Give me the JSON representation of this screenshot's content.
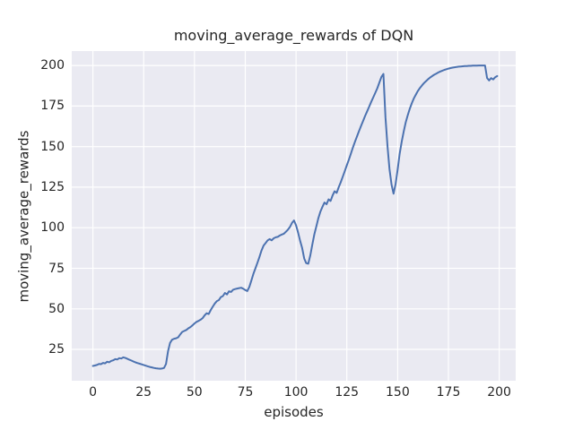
{
  "figure": {
    "background": "#ffffff"
  },
  "chart_data": {
    "type": "line",
    "title": "moving_average_rewards of DQN",
    "xlabel": "episodes",
    "ylabel": "moving_average_rewards",
    "x_ticks": [
      0,
      25,
      50,
      75,
      100,
      125,
      150,
      175,
      200
    ],
    "y_ticks": [
      25,
      50,
      75,
      100,
      125,
      150,
      175,
      200
    ],
    "xlim": [
      -10.4,
      208.1
    ],
    "ylim": [
      5.7,
      208.9
    ],
    "grid": true,
    "legend_position": "none",
    "colors": {
      "line": "#4C72B0",
      "axes_background": "#EAEAF2",
      "grid": "#FFFFFF",
      "text": "#262626"
    },
    "series": [
      {
        "name": "moving_average_rewards",
        "x_start": 0,
        "x_step": 1,
        "y": [
          14.8,
          15.1,
          15.4,
          16.1,
          15.9,
          16.7,
          16.4,
          17.4,
          17.1,
          17.9,
          18.3,
          19.0,
          18.8,
          19.6,
          19.4,
          20.1,
          19.7,
          19.2,
          18.6,
          18.1,
          17.5,
          17.0,
          16.6,
          16.2,
          15.8,
          15.4,
          15.0,
          14.6,
          14.2,
          13.9,
          13.6,
          13.4,
          13.2,
          13.1,
          13.2,
          13.6,
          16.0,
          24.0,
          29.0,
          31.0,
          31.6,
          31.9,
          32.5,
          34.3,
          35.8,
          36.4,
          37.0,
          38.0,
          38.8,
          39.8,
          41.0,
          42.0,
          42.6,
          43.3,
          44.3,
          46.0,
          47.3,
          46.8,
          49.3,
          51.3,
          53.3,
          54.8,
          55.4,
          57.3,
          57.9,
          59.8,
          58.9,
          60.8,
          60.4,
          61.8,
          62.2,
          62.5,
          62.8,
          63.0,
          62.4,
          61.6,
          61.0,
          63.5,
          67.5,
          71.5,
          75.0,
          78.5,
          82.0,
          86.0,
          89.0,
          90.5,
          92.2,
          93.0,
          92.2,
          93.5,
          94.1,
          94.4,
          95.2,
          95.8,
          96.3,
          97.5,
          98.8,
          100.5,
          103.0,
          104.5,
          101.5,
          97.0,
          92.0,
          87.5,
          81.0,
          78.2,
          77.8,
          83.0,
          89.5,
          96.0,
          101.0,
          106.0,
          110.0,
          113.0,
          115.5,
          114.5,
          117.5,
          116.5,
          120.0,
          122.5,
          121.5,
          125.0,
          128.0,
          131.5,
          135.0,
          138.5,
          142.0,
          145.8,
          149.5,
          153.0,
          156.4,
          159.6,
          162.8,
          165.9,
          168.9,
          171.8,
          174.7,
          177.6,
          180.4,
          183.2,
          186.0,
          189.5,
          193.0,
          194.8,
          168.0,
          150.0,
          136.0,
          126.5,
          121.0,
          127.0,
          136.0,
          145.5,
          153.0,
          159.5,
          165.0,
          169.5,
          173.5,
          176.8,
          179.8,
          182.2,
          184.4,
          186.2,
          187.8,
          189.2,
          190.4,
          191.6,
          192.6,
          193.5,
          194.3,
          195.0,
          195.7,
          196.3,
          196.8,
          197.3,
          197.7,
          198.1,
          198.4,
          198.7,
          198.9,
          199.1,
          199.3,
          199.4,
          199.5,
          199.6,
          199.7,
          199.8,
          199.8,
          199.9,
          199.9,
          199.9,
          200.0,
          200.0,
          200.0,
          200.0,
          192.3,
          190.8,
          192.2,
          191.4,
          192.8,
          193.5
        ]
      }
    ]
  }
}
